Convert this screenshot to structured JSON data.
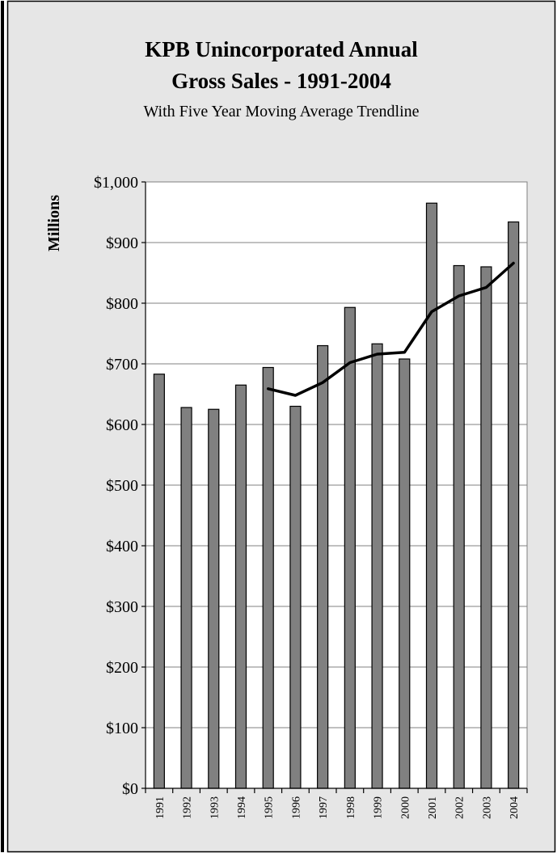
{
  "chart_data": {
    "type": "bar",
    "title_lines": [
      "KPB Unincorporated Annual",
      "Gross Sales - 1991-2004"
    ],
    "subtitle": "With Five Year Moving Average Trendline",
    "xlabel": "",
    "ylabel": "Millions",
    "ylim": [
      0,
      1000
    ],
    "yticks": [
      "$0",
      "$100",
      "$200",
      "$300",
      "$400",
      "$500",
      "$600",
      "$700",
      "$800",
      "$900",
      "$1,000"
    ],
    "categories": [
      "1991",
      "1992",
      "1993",
      "1994",
      "1995",
      "1996",
      "1997",
      "1998",
      "1999",
      "2000",
      "2001",
      "2002",
      "2003",
      "2004"
    ],
    "series": [
      {
        "type": "bar",
        "values": [
          683,
          628,
          625,
          665,
          694,
          630,
          730,
          793,
          733,
          708,
          965,
          862,
          860,
          934
        ]
      },
      {
        "type": "line",
        "values": [
          null,
          null,
          null,
          null,
          659,
          648,
          669,
          702,
          716,
          719,
          786,
          812,
          826,
          866
        ]
      }
    ],
    "grid": true,
    "legend": "none",
    "colors": {
      "bar_fill": "#808080",
      "trend_line": "#000000",
      "plot_background": "#ffffff",
      "outer_background": "#e6e6e6"
    }
  }
}
